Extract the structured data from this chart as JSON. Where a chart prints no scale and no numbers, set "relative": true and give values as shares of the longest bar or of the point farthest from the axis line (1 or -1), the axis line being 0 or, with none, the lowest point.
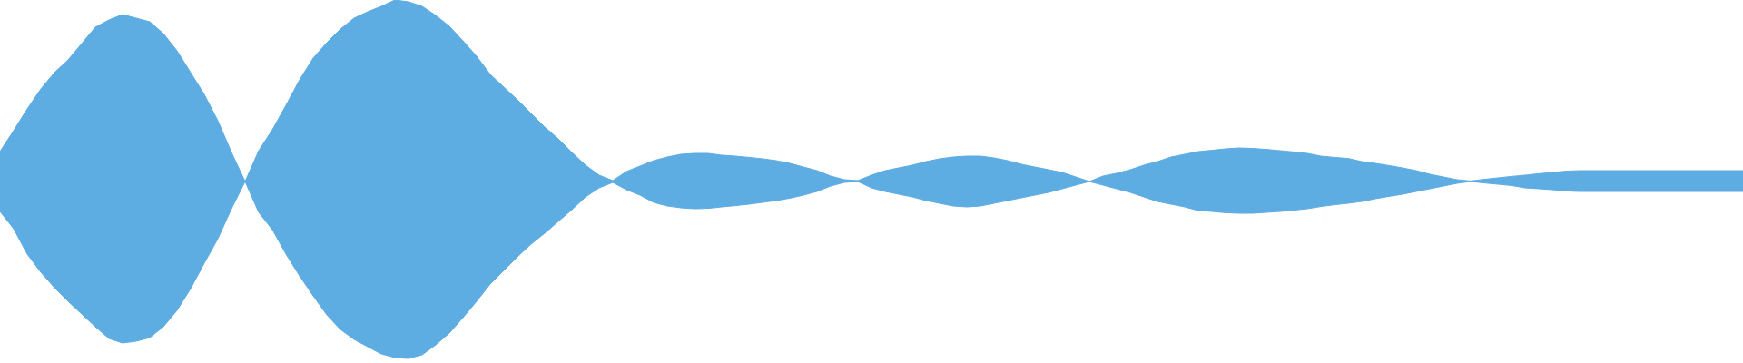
{
  "chart_data": {
    "type": "area",
    "relative": true,
    "tick_labels": false,
    "marker": "none",
    "categories": [
      null,
      null,
      null,
      null,
      null,
      null,
      null,
      null,
      null,
      null,
      null,
      null,
      null,
      null,
      null,
      null,
      null,
      null,
      null,
      null,
      null,
      null,
      null,
      null,
      null,
      null,
      null,
      null,
      null,
      null,
      null,
      null,
      null,
      null,
      null,
      null,
      null,
      null,
      null,
      null,
      null,
      null,
      null,
      null,
      null,
      null,
      null,
      null,
      null,
      null,
      null,
      null,
      null,
      null,
      null,
      null,
      null,
      null,
      null,
      null,
      null,
      null,
      null,
      null,
      null,
      null,
      null,
      null,
      null,
      null,
      null,
      null,
      null,
      null,
      null,
      null,
      null,
      null,
      null,
      null,
      null,
      null,
      null,
      null,
      null,
      null,
      null,
      null,
      null,
      null,
      null,
      null,
      null,
      null,
      null,
      null,
      null,
      null,
      null,
      null,
      null,
      null,
      null,
      null,
      null,
      null,
      null,
      null,
      null,
      null,
      null,
      null,
      null,
      null,
      null,
      null,
      null,
      null,
      null,
      null,
      null,
      null,
      null,
      null,
      null,
      null,
      null,
      null,
      null
    ],
    "series": [
      {
        "color": "#5dace2",
        "values": [
          0.165,
          0.28,
          0.4,
          0.51,
          0.6,
          0.67,
          0.76,
          0.85,
          0.89,
          0.92,
          0.9,
          0.88,
          0.815,
          0.72,
          0.6,
          0.48,
          0.335,
          0.16,
          0,
          0.17,
          0.285,
          0.42,
          0.56,
          0.68,
          0.765,
          0.84,
          0.9,
          0.935,
          0.965,
          1,
          0.99,
          0.965,
          0.915,
          0.855,
          0.775,
          0.69,
          0.59,
          0.52,
          0.45,
          0.375,
          0.3,
          0.235,
          0.16,
          0.09,
          0.035,
          0.005,
          0.055,
          0.085,
          0.115,
          0.135,
          0.15,
          0.155,
          0.155,
          0.145,
          0.14,
          0.133,
          0.125,
          0.115,
          0.1,
          0.08,
          0.06,
          0.03,
          0.01,
          0.005,
          0.035,
          0.06,
          0.075,
          0.09,
          0.11,
          0.125,
          0.135,
          0.14,
          0.14,
          0.13,
          0.115,
          0.095,
          0.08,
          0.065,
          0.05,
          0.025,
          0,
          0.03,
          0.045,
          0.065,
          0.09,
          0.11,
          0.135,
          0.15,
          0.165,
          0.172,
          0.18,
          0.185,
          0.182,
          0.177,
          0.17,
          0.163,
          0.155,
          0.14,
          0.133,
          0.127,
          0.11,
          0.1,
          0.088,
          0.075,
          0.06,
          0.04,
          0.025,
          0.01,
          0.003,
          0.012,
          0.02,
          0.028,
          0.035,
          0.043,
          0.05,
          0.057,
          0.06,
          0.06,
          0.06,
          0.06,
          0.06,
          0.06,
          0.06,
          0.06,
          0.06,
          0.06,
          0.06,
          0.06,
          0.06
        ]
      },
      {
        "color": "#5dace2",
        "values": [
          -0.165,
          -0.26,
          -0.4,
          -0.5,
          -0.585,
          -0.66,
          -0.73,
          -0.8,
          -0.865,
          -0.89,
          -0.88,
          -0.86,
          -0.8,
          -0.71,
          -0.59,
          -0.45,
          -0.315,
          -0.15,
          0,
          -0.17,
          -0.265,
          -0.4,
          -0.52,
          -0.63,
          -0.735,
          -0.815,
          -0.87,
          -0.91,
          -0.95,
          -0.97,
          -0.975,
          -0.955,
          -0.9,
          -0.835,
          -0.75,
          -0.66,
          -0.565,
          -0.49,
          -0.415,
          -0.345,
          -0.285,
          -0.22,
          -0.155,
          -0.085,
          -0.035,
          -0.005,
          -0.045,
          -0.075,
          -0.115,
          -0.135,
          -0.145,
          -0.15,
          -0.148,
          -0.14,
          -0.133,
          -0.125,
          -0.115,
          -0.105,
          -0.092,
          -0.075,
          -0.055,
          -0.025,
          -0.005,
          0,
          -0.035,
          -0.055,
          -0.07,
          -0.085,
          -0.105,
          -0.12,
          -0.135,
          -0.14,
          -0.135,
          -0.12,
          -0.105,
          -0.09,
          -0.075,
          -0.06,
          -0.04,
          -0.02,
          0,
          -0.02,
          -0.04,
          -0.06,
          -0.085,
          -0.11,
          -0.125,
          -0.14,
          -0.16,
          -0.165,
          -0.172,
          -0.175,
          -0.175,
          -0.17,
          -0.165,
          -0.158,
          -0.15,
          -0.138,
          -0.128,
          -0.12,
          -0.11,
          -0.095,
          -0.082,
          -0.07,
          -0.055,
          -0.04,
          -0.025,
          -0.01,
          0,
          -0.008,
          -0.015,
          -0.022,
          -0.035,
          -0.04,
          -0.045,
          -0.052,
          -0.055,
          -0.055,
          -0.055,
          -0.055,
          -0.055,
          -0.055,
          -0.055,
          -0.055,
          -0.055,
          -0.055,
          -0.055,
          -0.055,
          -0.055
        ]
      }
    ]
  }
}
